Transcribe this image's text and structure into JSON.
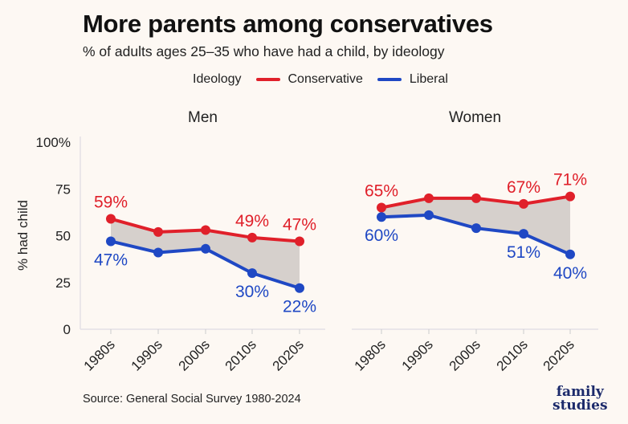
{
  "chart_data": {
    "type": "line",
    "title": "More parents among conservatives",
    "subtitle": "% of adults ages 25–35 who have had a child, by ideology",
    "ylabel": "% had child",
    "ylim": [
      0,
      100
    ],
    "yticks": [
      "0",
      "25",
      "50",
      "75",
      "100%"
    ],
    "ytick_values": [
      0,
      25,
      50,
      75,
      100
    ],
    "categories": [
      "1980s",
      "1990s",
      "2000s",
      "2010s",
      "2020s"
    ],
    "legend": {
      "title": "Ideology",
      "placement": "top"
    },
    "shaded_gap": true,
    "panels": [
      {
        "label": "Men",
        "series": [
          {
            "name": "Conservative",
            "color": "#e0202a",
            "values": [
              59,
              52,
              53,
              49,
              47
            ],
            "labels": [
              "59%",
              "",
              "",
              "49%",
              "47%"
            ]
          },
          {
            "name": "Liberal",
            "color": "#1f48c4",
            "values": [
              47,
              41,
              43,
              30,
              22
            ],
            "labels": [
              "47%",
              "",
              "",
              "30%",
              "22%"
            ]
          }
        ]
      },
      {
        "label": "Women",
        "series": [
          {
            "name": "Conservative",
            "color": "#e0202a",
            "values": [
              65,
              70,
              70,
              67,
              71
            ],
            "labels": [
              "65%",
              "",
              "",
              "67%",
              "71%"
            ]
          },
          {
            "name": "Liberal",
            "color": "#1f48c4",
            "values": [
              60,
              61,
              54,
              51,
              40
            ],
            "labels": [
              "60%",
              "",
              "",
              "51%",
              "40%"
            ]
          }
        ]
      }
    ]
  },
  "source": "Source: General Social Survey 1980-2024",
  "logo": {
    "line1": "family",
    "line2": "studies"
  },
  "colors": {
    "background": "#fdf8f3",
    "gap_fill": "#d6d0cc"
  }
}
